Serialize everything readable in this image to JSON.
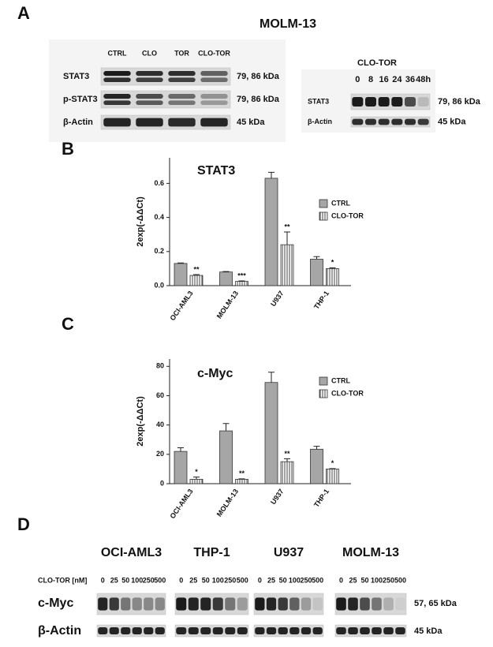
{
  "panel_a": {
    "label": "A",
    "title": "MOLM-13",
    "left_blot": {
      "columns": [
        "CTRL",
        "CLO",
        "TOR",
        "CLO-TOR"
      ],
      "rows": [
        {
          "label": "STAT3",
          "size": "79, 86 kDa"
        },
        {
          "label": "p-STAT3",
          "size": "79, 86 kDa"
        },
        {
          "label": "β-Actin",
          "size": "45 kDa"
        }
      ]
    },
    "right_blot": {
      "treatment": "CLO-TOR",
      "timepoints": [
        "0",
        "8",
        "16",
        "24",
        "36",
        "48h"
      ],
      "rows": [
        {
          "label": "STAT3",
          "size": "79, 86 kDa"
        },
        {
          "label": "β-Actin",
          "size": "45 kDa"
        }
      ]
    }
  },
  "panel_b": {
    "label": "B"
  },
  "panel_c": {
    "label": "C"
  },
  "chart_data": [
    {
      "type": "bar",
      "title": "STAT3",
      "y_label": "2exp(-ΔΔCt)",
      "categories": [
        "OCI-AML3",
        "MOLM-13",
        "U937",
        "THP-1"
      ],
      "series": [
        {
          "name": "CTRL",
          "color": "#a6a6a6",
          "values": [
            0.13,
            0.08,
            0.63,
            0.155
          ],
          "errors": [
            0.003,
            0.003,
            0.035,
            0.015
          ]
        },
        {
          "name": "CLO-TOR",
          "color": "#ffffff",
          "hatch": true,
          "values": [
            0.06,
            0.025,
            0.24,
            0.1
          ],
          "errors": [
            0.005,
            0.003,
            0.075,
            0.005
          ],
          "significance": [
            "**",
            "***",
            "**",
            "*"
          ]
        }
      ],
      "ylim": [
        0,
        0.75
      ],
      "yticks": [
        {
          "value": 0,
          "label": "0.0"
        },
        0.2,
        0.4,
        0.6
      ],
      "legend": "upper right"
    },
    {
      "type": "bar",
      "title": "c-Myc",
      "y_label": "2exp(-ΔΔCt)",
      "categories": [
        "OCI-AML3",
        "MOLM-13",
        "U937",
        "THP-1"
      ],
      "series": [
        {
          "name": "CTRL",
          "color": "#a6a6a6",
          "values": [
            22,
            36,
            69,
            23.5
          ],
          "errors": [
            2.5,
            5,
            7,
            2
          ]
        },
        {
          "name": "CLO-TOR",
          "color": "#ffffff",
          "hatch": true,
          "values": [
            3,
            3,
            15,
            10
          ],
          "errors": [
            1.5,
            0.3,
            2,
            0.3
          ],
          "significance": [
            "*",
            "**",
            "**",
            "*"
          ]
        }
      ],
      "ylim": [
        0,
        85
      ],
      "yticks": [
        0,
        20,
        40,
        60,
        80
      ],
      "legend": "upper right"
    }
  ],
  "panel_d": {
    "label": "D",
    "treatment_label": "CLO-TOR [nM]",
    "cell_lines": [
      {
        "name": "OCI-AML3",
        "concentrations": [
          "0",
          "25",
          "50",
          "100",
          "250",
          "500"
        ]
      },
      {
        "name": "THP-1",
        "concentrations": [
          "0",
          "25",
          "50",
          "100",
          "250",
          "500"
        ]
      },
      {
        "name": "U937",
        "concentrations": [
          "0",
          "25",
          "50",
          "100",
          "250",
          "500"
        ]
      },
      {
        "name": "MOLM-13",
        "concentrations": [
          "0",
          "25",
          "50",
          "100",
          "250",
          "500"
        ]
      }
    ],
    "rows": [
      {
        "label": "c-Myc",
        "size": "57, 65 kDa"
      },
      {
        "label": "β-Actin",
        "size": "45 kDa"
      }
    ]
  }
}
